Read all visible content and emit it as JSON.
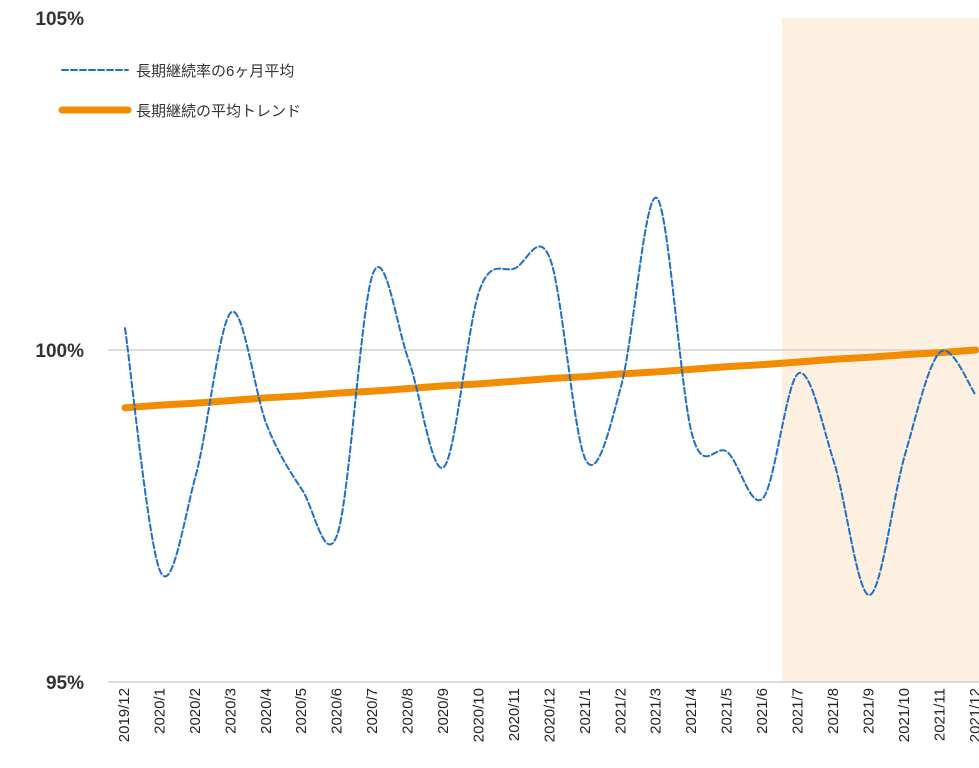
{
  "chart_data": {
    "type": "line",
    "categories": [
      "2019/12",
      "2020/1",
      "2020/2",
      "2020/3",
      "2020/4",
      "2020/5",
      "2020/6",
      "2020/7",
      "2020/8",
      "2020/9",
      "2020/10",
      "2020/11",
      "2020/12",
      "2021/1",
      "2021/2",
      "2021/3",
      "2021/4",
      "2021/5",
      "2021/6",
      "2021/7",
      "2021/8",
      "2021/9",
      "2021/10",
      "2021/11",
      "2021/12"
    ],
    "series": [
      {
        "name": "長期継続率の6ヶ月平均",
        "color": "#1f6fc5",
        "style": "dashed",
        "values": [
          100.33,
          96.66,
          98.12,
          100.57,
          98.87,
          97.89,
          97.24,
          101.16,
          99.85,
          98.24,
          100.9,
          101.23,
          101.36,
          98.34,
          99.47,
          102.29,
          98.72,
          98.46,
          97.77,
          99.65,
          98.31,
          96.31,
          98.42,
          99.97,
          99.32
        ]
      },
      {
        "name": "長期継続の平均トレンド",
        "color": "#f28c00",
        "style": "solid",
        "values": [
          99.13,
          99.17,
          99.2,
          99.24,
          99.28,
          99.31,
          99.35,
          99.38,
          99.42,
          99.46,
          99.49,
          99.53,
          99.57,
          99.6,
          99.64,
          99.67,
          99.71,
          99.75,
          99.78,
          99.82,
          99.86,
          99.89,
          99.93,
          99.96,
          100.0
        ]
      }
    ],
    "ylim": [
      95,
      105
    ],
    "yticks": [
      {
        "value": 95,
        "label": "95%"
      },
      {
        "value": 100,
        "label": "100%"
      },
      {
        "value": 105,
        "label": "105%"
      }
    ],
    "grid": true,
    "legend": "top-left"
  }
}
